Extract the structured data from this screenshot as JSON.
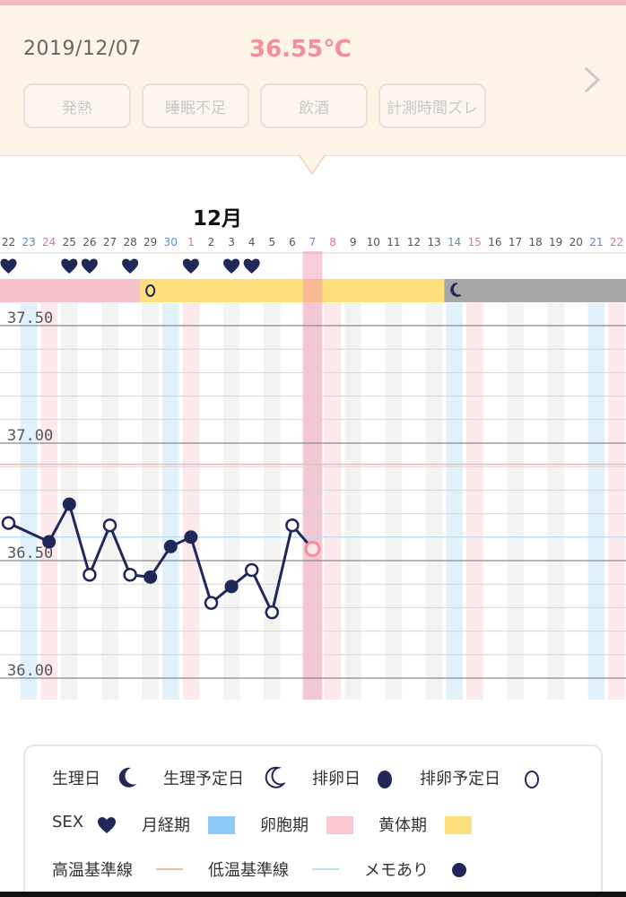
{
  "header": {
    "date": "2019/12/07",
    "temperature": "36.55℃",
    "tags": [
      "発熱",
      "睡眠不足",
      "飲酒",
      "計測時間ズレ"
    ]
  },
  "chart_data": {
    "type": "line",
    "month_label": "12月",
    "dates": [
      "22",
      "23",
      "24",
      "25",
      "26",
      "27",
      "28",
      "29",
      "30",
      "1",
      "2",
      "3",
      "4",
      "5",
      "6",
      "7",
      "8",
      "9",
      "10",
      "11",
      "12",
      "13",
      "14",
      "15",
      "16",
      "17",
      "18",
      "19",
      "20",
      "21",
      "22"
    ],
    "date_colors": [
      "#555555",
      "#4a8fd6",
      "#ee6f86",
      "#555555",
      "#555555",
      "#555555",
      "#555555",
      "#555555",
      "#4a8fd6",
      "#ee6f86",
      "#555555",
      "#555555",
      "#555555",
      "#555555",
      "#555555",
      "#8e7fd0",
      "#ee6f86",
      "#555555",
      "#555555",
      "#555555",
      "#555555",
      "#555555",
      "#4a8fd6",
      "#ee6f86",
      "#555555",
      "#555555",
      "#555555",
      "#555555",
      "#555555",
      "#4a8fd6",
      "#ee6f86"
    ],
    "selected_date": "7",
    "temperatures": [
      {
        "date": "22",
        "value": 36.66,
        "memo": false
      },
      {
        "date": "24",
        "value": 36.58,
        "memo": true
      },
      {
        "date": "25",
        "value": 36.74,
        "memo": true
      },
      {
        "date": "26",
        "value": 36.44,
        "memo": false
      },
      {
        "date": "27",
        "value": 36.65,
        "memo": false
      },
      {
        "date": "28",
        "value": 36.44,
        "memo": false
      },
      {
        "date": "29",
        "value": 36.43,
        "memo": true
      },
      {
        "date": "30",
        "value": 36.56,
        "memo": true
      },
      {
        "date": "1",
        "value": 36.6,
        "memo": true
      },
      {
        "date": "2",
        "value": 36.32,
        "memo": false
      },
      {
        "date": "3",
        "value": 36.39,
        "memo": true
      },
      {
        "date": "4",
        "value": 36.46,
        "memo": false
      },
      {
        "date": "5",
        "value": 36.28,
        "memo": false
      },
      {
        "date": "6",
        "value": 36.65,
        "memo": false
      },
      {
        "date": "7",
        "value": 36.55,
        "memo": false,
        "current": true
      }
    ],
    "sex_dates": [
      "22",
      "25",
      "26",
      "28",
      "1",
      "3",
      "4"
    ],
    "phases": [
      {
        "name": "卵胞期",
        "from": "22",
        "to": "28",
        "color": "#f7c3ca"
      },
      {
        "name": "黄体期",
        "from": "29",
        "to": "13",
        "color": "#fde07c"
      },
      {
        "name": "生理予定",
        "from": "14",
        "to": "22",
        "color": "#a6a6a6"
      }
    ],
    "ovulation_expected_date": "29",
    "period_expected_date": "14",
    "y_ticks": [
      "37.50",
      "37.00",
      "36.50",
      "36.00"
    ],
    "ylim": [
      35.95,
      37.55
    ],
    "high_baseline": 36.91,
    "low_baseline": 36.6
  },
  "legend": {
    "items": [
      {
        "label": "生理日",
        "icon": "moon-filled-icon"
      },
      {
        "label": "生理予定日",
        "icon": "moon-outline-icon"
      },
      {
        "label": "排卵日",
        "icon": "egg-filled-icon"
      },
      {
        "label": "排卵予定日",
        "icon": "egg-outline-icon"
      },
      {
        "label": "SEX",
        "icon": "heart-icon"
      },
      {
        "label": "月経期",
        "icon": "swatch"
      },
      {
        "label": "卵胞期",
        "icon": "swatch"
      },
      {
        "label": "黄体期",
        "icon": "swatch"
      },
      {
        "label": "高温基準線",
        "icon": "line"
      },
      {
        "label": "低温基準線",
        "icon": "line"
      },
      {
        "label": "メモあり",
        "icon": "dot-icon"
      }
    ],
    "colors": {
      "navy": "#1f2858",
      "menstrual": "#8fcaf7",
      "follicular": "#fcc8d0",
      "luteal": "#fde07c",
      "high_line": "#f3b8ad",
      "low_line": "#bfe0f3"
    }
  }
}
